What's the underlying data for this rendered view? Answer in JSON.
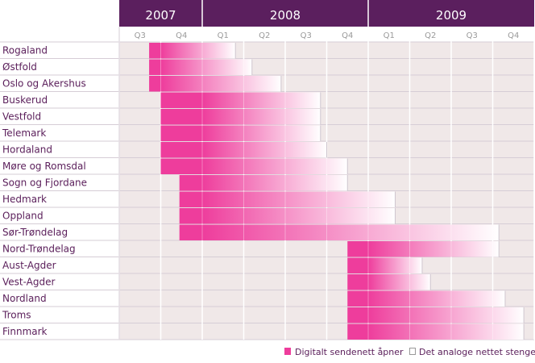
{
  "chart_data": {
    "type": "bar",
    "subtype": "gantt",
    "title": "",
    "xlabel": "",
    "ylabel": "",
    "years": [
      {
        "label": "2007",
        "quarters": [
          "Q3",
          "Q4"
        ]
      },
      {
        "label": "2008",
        "quarters": [
          "Q1",
          "Q2",
          "Q3",
          "Q4"
        ]
      },
      {
        "label": "2009",
        "quarters": [
          "Q1",
          "Q2",
          "Q3",
          "Q4"
        ]
      }
    ],
    "x_unit": "quarters from start of 2007 Q3",
    "xlim": [
      0,
      10
    ],
    "rows": [
      {
        "name": "Rogaland",
        "digital_start": 0.72,
        "analog_end": 2.8
      },
      {
        "name": "Østfold",
        "digital_start": 0.72,
        "analog_end": 3.2
      },
      {
        "name": "Oslo og Akershus",
        "digital_start": 0.72,
        "analog_end": 3.9
      },
      {
        "name": "Buskerud",
        "digital_start": 1.0,
        "analog_end": 4.85
      },
      {
        "name": "Vestfold",
        "digital_start": 1.0,
        "analog_end": 4.85
      },
      {
        "name": "Telemark",
        "digital_start": 1.0,
        "analog_end": 4.85
      },
      {
        "name": "Hordaland",
        "digital_start": 1.0,
        "analog_end": 5.0
      },
      {
        "name": "Møre og Romsdal",
        "digital_start": 1.0,
        "analog_end": 5.5
      },
      {
        "name": "Sogn og Fjordane",
        "digital_start": 1.45,
        "analog_end": 5.5
      },
      {
        "name": "Hedmark",
        "digital_start": 1.45,
        "analog_end": 6.65
      },
      {
        "name": "Oppland",
        "digital_start": 1.45,
        "analog_end": 6.65
      },
      {
        "name": "Sør-Trøndelag",
        "digital_start": 1.45,
        "analog_end": 9.15
      },
      {
        "name": "Nord-Trøndelag",
        "digital_start": 5.5,
        "analog_end": 9.15
      },
      {
        "name": "Aust-Agder",
        "digital_start": 5.5,
        "analog_end": 7.3
      },
      {
        "name": "Vest-Agder",
        "digital_start": 5.5,
        "analog_end": 7.5
      },
      {
        "name": "Nordland",
        "digital_start": 5.5,
        "analog_end": 9.3
      },
      {
        "name": "Troms",
        "digital_start": 5.5,
        "analog_end": 9.75
      },
      {
        "name": "Finnmark",
        "digital_start": 5.5,
        "analog_end": 9.75
      }
    ],
    "legend": [
      {
        "label": "Digitalt sendenett åpner",
        "color": "#ee3d9c"
      },
      {
        "label": "Det analoge nettet stenges",
        "color": "#ffffff"
      }
    ],
    "legend_position": "bottom-right",
    "grid": true,
    "colors": {
      "header": "#5b1f5e",
      "digital": "#ee3d9c",
      "cell": "#f0e8e8",
      "row_label": "#5a1e5a",
      "quarter_label": "#9a9a9a"
    }
  }
}
